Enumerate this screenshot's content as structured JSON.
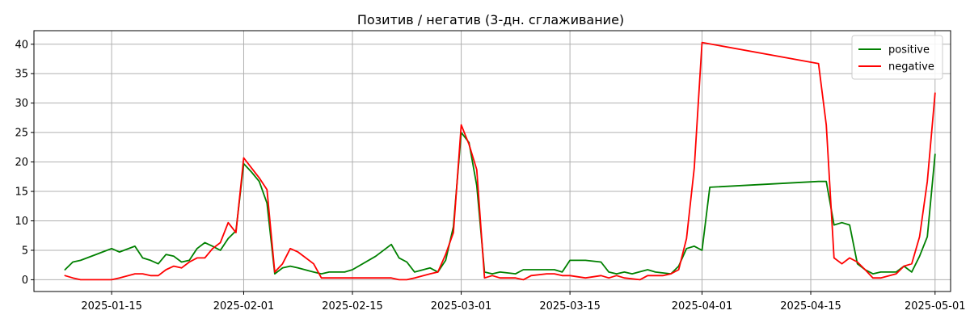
{
  "chart_data": {
    "type": "line",
    "title": "Позитив / негатив (3-дн. сглаживание)",
    "xlabel": "",
    "ylabel": "",
    "x_type": "date",
    "xlim": [
      "2025-01-05",
      "2025-05-03"
    ],
    "ylim": [
      -2,
      42.3
    ],
    "x_ticks": [
      "2025-01-15",
      "2025-02-01",
      "2025-02-15",
      "2025-03-01",
      "2025-03-15",
      "2025-04-01",
      "2025-04-15",
      "2025-05-01"
    ],
    "y_ticks": [
      0,
      5,
      10,
      15,
      20,
      25,
      30,
      35,
      40
    ],
    "grid": true,
    "legend_position": "top-right",
    "series": [
      {
        "name": "positive",
        "color": "#008000",
        "points": [
          [
            "2025-01-09",
            1.7
          ],
          [
            "2025-01-10",
            3.0
          ],
          [
            "2025-01-11",
            3.3
          ],
          [
            "2025-01-13",
            4.3
          ],
          [
            "2025-01-15",
            5.3
          ],
          [
            "2025-01-16",
            4.7
          ],
          [
            "2025-01-18",
            5.7
          ],
          [
            "2025-01-19",
            3.7
          ],
          [
            "2025-01-20",
            3.3
          ],
          [
            "2025-01-21",
            2.7
          ],
          [
            "2025-01-22",
            4.3
          ],
          [
            "2025-01-23",
            4.0
          ],
          [
            "2025-01-24",
            3.0
          ],
          [
            "2025-01-25",
            3.3
          ],
          [
            "2025-01-26",
            5.3
          ],
          [
            "2025-01-27",
            6.3
          ],
          [
            "2025-01-28",
            5.7
          ],
          [
            "2025-01-29",
            5.0
          ],
          [
            "2025-01-30",
            7.0
          ],
          [
            "2025-01-31",
            8.3
          ],
          [
            "2025-02-01",
            19.7
          ],
          [
            "2025-02-02",
            18.3
          ],
          [
            "2025-02-03",
            16.7
          ],
          [
            "2025-02-04",
            13.0
          ],
          [
            "2025-02-05",
            1.0
          ],
          [
            "2025-02-06",
            2.0
          ],
          [
            "2025-02-07",
            2.3
          ],
          [
            "2025-02-08",
            2.0
          ],
          [
            "2025-02-10",
            1.3
          ],
          [
            "2025-02-11",
            1.0
          ],
          [
            "2025-02-12",
            1.3
          ],
          [
            "2025-02-14",
            1.3
          ],
          [
            "2025-02-15",
            1.7
          ],
          [
            "2025-02-18",
            4.0
          ],
          [
            "2025-02-20",
            6.0
          ],
          [
            "2025-02-21",
            3.7
          ],
          [
            "2025-02-22",
            3.0
          ],
          [
            "2025-02-23",
            1.3
          ],
          [
            "2025-02-25",
            2.0
          ],
          [
            "2025-02-26",
            1.3
          ],
          [
            "2025-02-27",
            3.3
          ],
          [
            "2025-02-28",
            9.0
          ],
          [
            "2025-03-01",
            25.0
          ],
          [
            "2025-03-02",
            23.3
          ],
          [
            "2025-03-03",
            16.0
          ],
          [
            "2025-03-04",
            1.3
          ],
          [
            "2025-03-05",
            1.0
          ],
          [
            "2025-03-06",
            1.3
          ],
          [
            "2025-03-08",
            1.0
          ],
          [
            "2025-03-09",
            1.7
          ],
          [
            "2025-03-11",
            1.7
          ],
          [
            "2025-03-13",
            1.7
          ],
          [
            "2025-03-14",
            1.3
          ],
          [
            "2025-03-15",
            3.3
          ],
          [
            "2025-03-17",
            3.3
          ],
          [
            "2025-03-19",
            3.0
          ],
          [
            "2025-03-20",
            1.3
          ],
          [
            "2025-03-21",
            1.0
          ],
          [
            "2025-03-22",
            1.3
          ],
          [
            "2025-03-23",
            1.0
          ],
          [
            "2025-03-25",
            1.7
          ],
          [
            "2025-03-26",
            1.3
          ],
          [
            "2025-03-28",
            1.0
          ],
          [
            "2025-03-29",
            2.3
          ],
          [
            "2025-03-30",
            5.3
          ],
          [
            "2025-03-31",
            5.7
          ],
          [
            "2025-04-01",
            5.0
          ],
          [
            "2025-04-02",
            15.7
          ],
          [
            "2025-04-16",
            16.7
          ],
          [
            "2025-04-17",
            16.7
          ],
          [
            "2025-04-18",
            9.3
          ],
          [
            "2025-04-19",
            9.7
          ],
          [
            "2025-04-20",
            9.3
          ],
          [
            "2025-04-21",
            2.7
          ],
          [
            "2025-04-22",
            1.7
          ],
          [
            "2025-04-23",
            1.0
          ],
          [
            "2025-04-24",
            1.3
          ],
          [
            "2025-04-26",
            1.3
          ],
          [
            "2025-04-27",
            2.3
          ],
          [
            "2025-04-28",
            1.3
          ],
          [
            "2025-04-29",
            4.0
          ],
          [
            "2025-04-30",
            7.3
          ],
          [
            "2025-05-01",
            21.3
          ]
        ]
      },
      {
        "name": "negative",
        "color": "#ff0000",
        "points": [
          [
            "2025-01-09",
            0.7
          ],
          [
            "2025-01-10",
            0.3
          ],
          [
            "2025-01-11",
            0.0
          ],
          [
            "2025-01-13",
            0.0
          ],
          [
            "2025-01-15",
            0.0
          ],
          [
            "2025-01-16",
            0.3
          ],
          [
            "2025-01-18",
            1.0
          ],
          [
            "2025-01-19",
            1.0
          ],
          [
            "2025-01-20",
            0.7
          ],
          [
            "2025-01-21",
            0.7
          ],
          [
            "2025-01-22",
            1.7
          ],
          [
            "2025-01-23",
            2.3
          ],
          [
            "2025-01-24",
            2.0
          ],
          [
            "2025-01-25",
            3.0
          ],
          [
            "2025-01-26",
            3.7
          ],
          [
            "2025-01-27",
            3.7
          ],
          [
            "2025-01-28",
            5.3
          ],
          [
            "2025-01-29",
            6.3
          ],
          [
            "2025-01-30",
            9.7
          ],
          [
            "2025-01-31",
            8.0
          ],
          [
            "2025-02-01",
            20.7
          ],
          [
            "2025-02-02",
            19.0
          ],
          [
            "2025-02-03",
            17.3
          ],
          [
            "2025-02-04",
            15.3
          ],
          [
            "2025-02-05",
            1.3
          ],
          [
            "2025-02-06",
            2.7
          ],
          [
            "2025-02-07",
            5.3
          ],
          [
            "2025-02-08",
            4.7
          ],
          [
            "2025-02-10",
            2.7
          ],
          [
            "2025-02-11",
            0.3
          ],
          [
            "2025-02-12",
            0.3
          ],
          [
            "2025-02-14",
            0.3
          ],
          [
            "2025-02-15",
            0.3
          ],
          [
            "2025-02-18",
            0.3
          ],
          [
            "2025-02-20",
            0.3
          ],
          [
            "2025-02-21",
            0.0
          ],
          [
            "2025-02-22",
            0.0
          ],
          [
            "2025-02-23",
            0.3
          ],
          [
            "2025-02-25",
            1.0
          ],
          [
            "2025-02-26",
            1.3
          ],
          [
            "2025-02-27",
            4.3
          ],
          [
            "2025-02-28",
            8.0
          ],
          [
            "2025-03-01",
            26.3
          ],
          [
            "2025-03-02",
            23.0
          ],
          [
            "2025-03-03",
            18.7
          ],
          [
            "2025-03-04",
            0.3
          ],
          [
            "2025-03-05",
            0.7
          ],
          [
            "2025-03-06",
            0.3
          ],
          [
            "2025-03-08",
            0.3
          ],
          [
            "2025-03-09",
            0.0
          ],
          [
            "2025-03-10",
            0.7
          ],
          [
            "2025-03-12",
            1.0
          ],
          [
            "2025-03-13",
            1.0
          ],
          [
            "2025-03-14",
            0.7
          ],
          [
            "2025-03-15",
            0.7
          ],
          [
            "2025-03-17",
            0.3
          ],
          [
            "2025-03-19",
            0.7
          ],
          [
            "2025-03-20",
            0.3
          ],
          [
            "2025-03-21",
            0.7
          ],
          [
            "2025-03-22",
            0.3
          ],
          [
            "2025-03-24",
            0.0
          ],
          [
            "2025-03-25",
            0.7
          ],
          [
            "2025-03-27",
            0.7
          ],
          [
            "2025-03-28",
            1.0
          ],
          [
            "2025-03-29",
            1.7
          ],
          [
            "2025-03-30",
            7.0
          ],
          [
            "2025-03-31",
            19.0
          ],
          [
            "2025-04-01",
            40.3
          ],
          [
            "2025-04-16",
            36.7
          ],
          [
            "2025-04-17",
            26.3
          ],
          [
            "2025-04-18",
            3.7
          ],
          [
            "2025-04-19",
            2.7
          ],
          [
            "2025-04-20",
            3.7
          ],
          [
            "2025-04-21",
            3.0
          ],
          [
            "2025-04-22",
            1.7
          ],
          [
            "2025-04-23",
            0.3
          ],
          [
            "2025-04-24",
            0.3
          ],
          [
            "2025-04-26",
            1.0
          ],
          [
            "2025-04-27",
            2.3
          ],
          [
            "2025-04-28",
            2.7
          ],
          [
            "2025-04-29",
            7.3
          ],
          [
            "2025-04-30",
            16.7
          ],
          [
            "2025-05-01",
            31.7
          ]
        ]
      }
    ]
  }
}
